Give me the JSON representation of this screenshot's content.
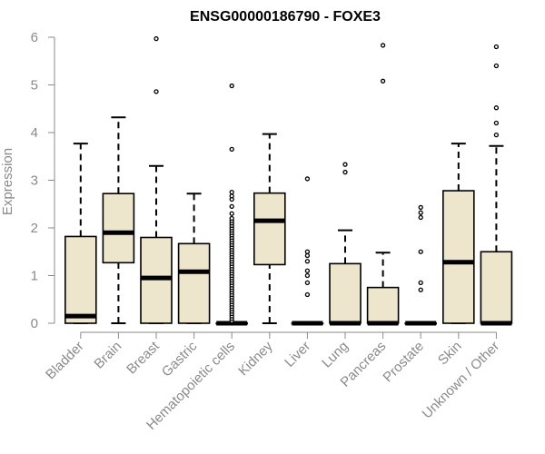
{
  "chart_data": {
    "type": "box",
    "title": "ENSG00000186790 - FOXE3",
    "xlabel": "",
    "ylabel": "Expression",
    "ylim": [
      0,
      6
    ],
    "yticks": [
      0,
      1,
      2,
      3,
      4,
      5,
      6
    ],
    "grid": false,
    "colors": {
      "box_fill": "#ede6cd",
      "box_stroke": "#000000",
      "axis": "#8a8a8a"
    },
    "categories": [
      "Bladder",
      "Brain",
      "Breast",
      "Gastric",
      "Hematopoietic cells",
      "Kidney",
      "Liver",
      "Lung",
      "Pancreas",
      "Prostate",
      "Skin",
      "Unknown / Other"
    ],
    "boxes": [
      {
        "category": "Bladder",
        "min": 0.0,
        "q1": 0.0,
        "median": 0.15,
        "q3": 1.82,
        "max": 3.77,
        "outliers": []
      },
      {
        "category": "Brain",
        "min": 0.0,
        "q1": 1.27,
        "median": 1.9,
        "q3": 2.72,
        "max": 4.32,
        "outliers": []
      },
      {
        "category": "Breast",
        "min": 0.0,
        "q1": 0.0,
        "median": 0.95,
        "q3": 1.8,
        "max": 3.3,
        "outliers": [
          4.86,
          5.97
        ]
      },
      {
        "category": "Gastric",
        "min": 0.0,
        "q1": 0.0,
        "median": 1.08,
        "q3": 1.67,
        "max": 2.72,
        "outliers": []
      },
      {
        "category": "Hematopoietic cells",
        "min": 0.0,
        "q1": 0.0,
        "median": 0.0,
        "q3": 0.0,
        "max": 0.0,
        "outliers": [
          0.05,
          0.1,
          0.15,
          0.2,
          0.25,
          0.3,
          0.35,
          0.4,
          0.45,
          0.5,
          0.55,
          0.6,
          0.65,
          0.7,
          0.75,
          0.8,
          0.85,
          0.9,
          0.95,
          1.0,
          1.05,
          1.1,
          1.15,
          1.2,
          1.25,
          1.3,
          1.35,
          1.4,
          1.45,
          1.5,
          1.55,
          1.6,
          1.65,
          1.7,
          1.75,
          1.8,
          1.85,
          1.9,
          1.95,
          2.0,
          2.05,
          2.1,
          2.15,
          2.2,
          2.3,
          2.45,
          2.6,
          2.67,
          2.75,
          3.65,
          4.98
        ]
      },
      {
        "category": "Kidney",
        "min": 0.0,
        "q1": 1.23,
        "median": 2.15,
        "q3": 2.73,
        "max": 3.97,
        "outliers": []
      },
      {
        "category": "Liver",
        "min": 0.0,
        "q1": 0.0,
        "median": 0.0,
        "q3": 0.0,
        "max": 0.0,
        "outliers": [
          0.6,
          0.85,
          1.0,
          1.1,
          1.3,
          1.42,
          1.5,
          3.03
        ]
      },
      {
        "category": "Lung",
        "min": 0.0,
        "q1": 0.0,
        "median": 0.0,
        "q3": 1.25,
        "max": 1.95,
        "outliers": [
          3.17,
          3.33
        ]
      },
      {
        "category": "Pancreas",
        "min": 0.0,
        "q1": 0.0,
        "median": 0.0,
        "q3": 0.75,
        "max": 1.48,
        "outliers": [
          5.08,
          5.83
        ]
      },
      {
        "category": "Prostate",
        "min": 0.0,
        "q1": 0.0,
        "median": 0.0,
        "q3": 0.0,
        "max": 0.0,
        "outliers": [
          0.7,
          0.85,
          1.5,
          2.22,
          2.32,
          2.43
        ]
      },
      {
        "category": "Skin",
        "min": 0.0,
        "q1": 0.0,
        "median": 1.28,
        "q3": 2.78,
        "max": 3.77,
        "outliers": []
      },
      {
        "category": "Unknown / Other",
        "min": 0.0,
        "q1": 0.0,
        "median": 0.0,
        "q3": 1.5,
        "max": 3.72,
        "outliers": [
          3.95,
          4.2,
          4.52,
          5.4,
          5.8
        ]
      }
    ]
  }
}
